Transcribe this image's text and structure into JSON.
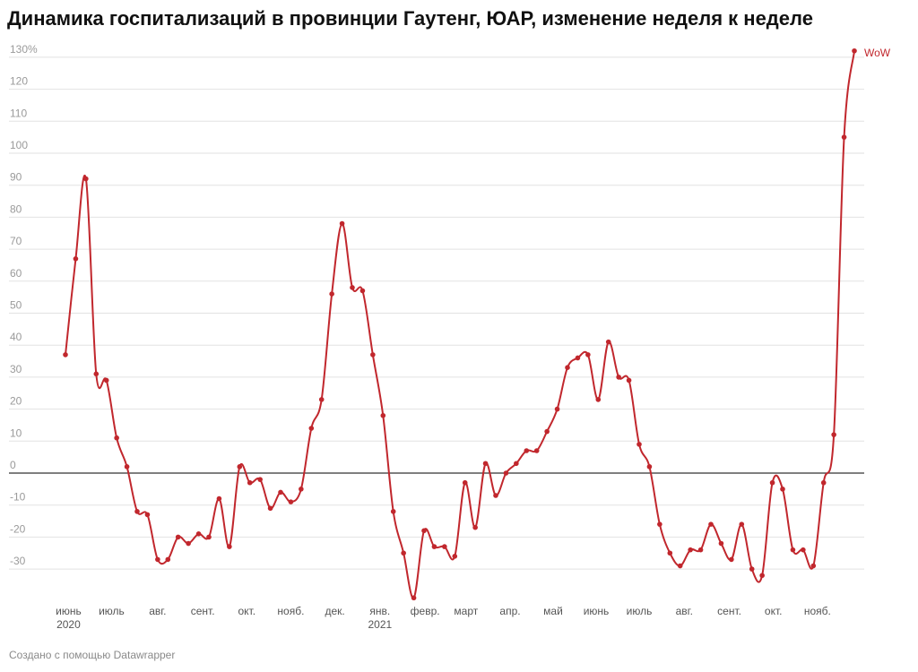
{
  "title": "Динамика госпитализаций в провинции Гаутенг, ЮАР, изменение неделя к неделе",
  "footer": "Создано с помощью Datawrapper",
  "colors": {
    "line": "#c1272d",
    "grid": "#e2e2e2",
    "zero": "#333333"
  },
  "chart_data": {
    "type": "line",
    "title": "Динамика госпитализаций в провинции Гаутенг, ЮАР, изменение неделя к неделе",
    "xlabel": "",
    "ylabel": "",
    "ylim": [
      -40,
      130
    ],
    "yticks": [
      130,
      120,
      110,
      100,
      90,
      80,
      70,
      60,
      50,
      40,
      30,
      20,
      10,
      0,
      -10,
      -20,
      -30
    ],
    "ytick_labels": [
      "130%",
      "120",
      "110",
      "100",
      "90",
      "80",
      "70",
      "60",
      "50",
      "40",
      "30",
      "20",
      "10",
      "0",
      "-10",
      "-20",
      "-30"
    ],
    "xticks": [
      {
        "week": 0.3,
        "label": "июнь",
        "sublabel": "2020"
      },
      {
        "week": 4.5,
        "label": "июль",
        "sublabel": ""
      },
      {
        "week": 9.0,
        "label": "авг.",
        "sublabel": ""
      },
      {
        "week": 13.4,
        "label": "сент.",
        "sublabel": ""
      },
      {
        "week": 17.7,
        "label": "окт.",
        "sublabel": ""
      },
      {
        "week": 22.0,
        "label": "нояб.",
        "sublabel": ""
      },
      {
        "week": 26.3,
        "label": "дек.",
        "sublabel": ""
      },
      {
        "week": 30.7,
        "label": "янв.",
        "sublabel": "2021"
      },
      {
        "week": 35.1,
        "label": "февр.",
        "sublabel": ""
      },
      {
        "week": 39.1,
        "label": "март",
        "sublabel": ""
      },
      {
        "week": 43.4,
        "label": "апр.",
        "sublabel": ""
      },
      {
        "week": 47.6,
        "label": "май",
        "sublabel": ""
      },
      {
        "week": 51.8,
        "label": "июнь",
        "sublabel": ""
      },
      {
        "week": 56.0,
        "label": "июль",
        "sublabel": ""
      },
      {
        "week": 60.4,
        "label": "авг.",
        "sublabel": ""
      },
      {
        "week": 64.8,
        "label": "сент.",
        "sublabel": ""
      },
      {
        "week": 69.1,
        "label": "окт.",
        "sublabel": ""
      },
      {
        "week": 73.4,
        "label": "нояб.",
        "sublabel": ""
      }
    ],
    "grid": true,
    "legend": "none",
    "series": [
      {
        "name": "WoW",
        "values": [
          37,
          67,
          92,
          31,
          29,
          11,
          2,
          -12,
          -13,
          -27,
          -27,
          -20,
          -22,
          -19,
          -20,
          -8,
          -23,
          2,
          -3,
          -2,
          -11,
          -6,
          -9,
          -5,
          14,
          23,
          56,
          78,
          58,
          57,
          37,
          18,
          -12,
          -25,
          -39,
          -18,
          -23,
          -23,
          -26,
          -3,
          -17,
          3,
          -7,
          0,
          3,
          7,
          7,
          13,
          20,
          33,
          36,
          37,
          23,
          41,
          30,
          29,
          9,
          2,
          -16,
          -25,
          -29,
          -24,
          -24,
          -16,
          -22,
          -27,
          -16,
          -30,
          -32,
          -3,
          -5,
          -24,
          -24,
          -29,
          -3,
          12,
          105,
          132
        ]
      }
    ]
  }
}
